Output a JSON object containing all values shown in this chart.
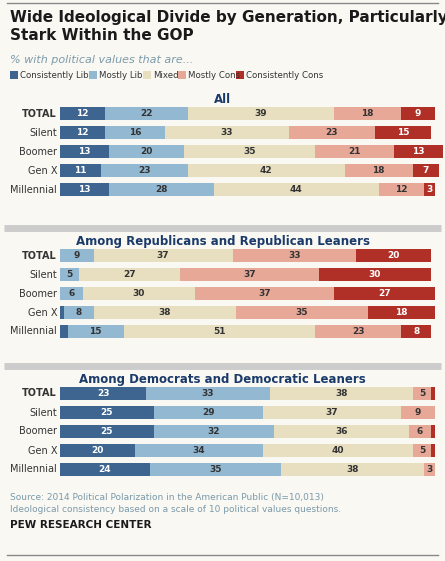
{
  "title": "Wide Ideological Divide by Generation, Particularly\nStark Within the GOP",
  "subtitle": "% with political values that are...",
  "legend_labels": [
    "Consistently Lib",
    "Mostly Lib",
    "Mixed",
    "Mostly Cons",
    "Consistently Cons"
  ],
  "colors": [
    "#3d6590",
    "#93b8d2",
    "#e8dfc0",
    "#e8a898",
    "#b03028"
  ],
  "sections": [
    {
      "title": "All",
      "rows": [
        "TOTAL",
        "Silent",
        "Boomer",
        "Gen X",
        "Millennial"
      ],
      "data": [
        [
          12,
          22,
          39,
          18,
          9
        ],
        [
          12,
          16,
          33,
          23,
          15
        ],
        [
          13,
          20,
          35,
          21,
          13
        ],
        [
          11,
          23,
          42,
          18,
          7
        ],
        [
          13,
          28,
          44,
          12,
          3
        ]
      ]
    },
    {
      "title": "Among Republicans and Republican Leaners",
      "rows": [
        "TOTAL",
        "Silent",
        "Boomer",
        "Gen X",
        "Millennial"
      ],
      "data": [
        [
          0,
          9,
          37,
          33,
          20
        ],
        [
          0,
          5,
          27,
          37,
          30
        ],
        [
          0,
          6,
          30,
          37,
          27
        ],
        [
          1,
          8,
          38,
          35,
          18
        ],
        [
          2,
          15,
          51,
          23,
          8
        ]
      ]
    },
    {
      "title": "Among Democrats and Democratic Leaners",
      "rows": [
        "TOTAL",
        "Silent",
        "Boomer",
        "Gen X",
        "Millennial"
      ],
      "data": [
        [
          23,
          33,
          38,
          5,
          1
        ],
        [
          25,
          29,
          37,
          9,
          0
        ],
        [
          25,
          32,
          36,
          6,
          1
        ],
        [
          20,
          34,
          40,
          5,
          1
        ],
        [
          24,
          35,
          38,
          3,
          0
        ]
      ]
    }
  ],
  "source_text": "Source: 2014 Political Polarization in the American Public (N=10,013)\nIdeological consistency based on a scale of 10 political values questions.",
  "pew_text": "PEW RESEARCH CENTER",
  "bg_color": "#f9f8f3",
  "title_color": "#1a1a1a",
  "subtitle_color": "#7a9aaa",
  "section_title_color": "#1a3a6a",
  "sep_color": "#cccccc",
  "source_color": "#7a9aaa",
  "pew_color": "#1a1a1a",
  "top_line_color": "#888888",
  "bottom_line_color": "#888888"
}
